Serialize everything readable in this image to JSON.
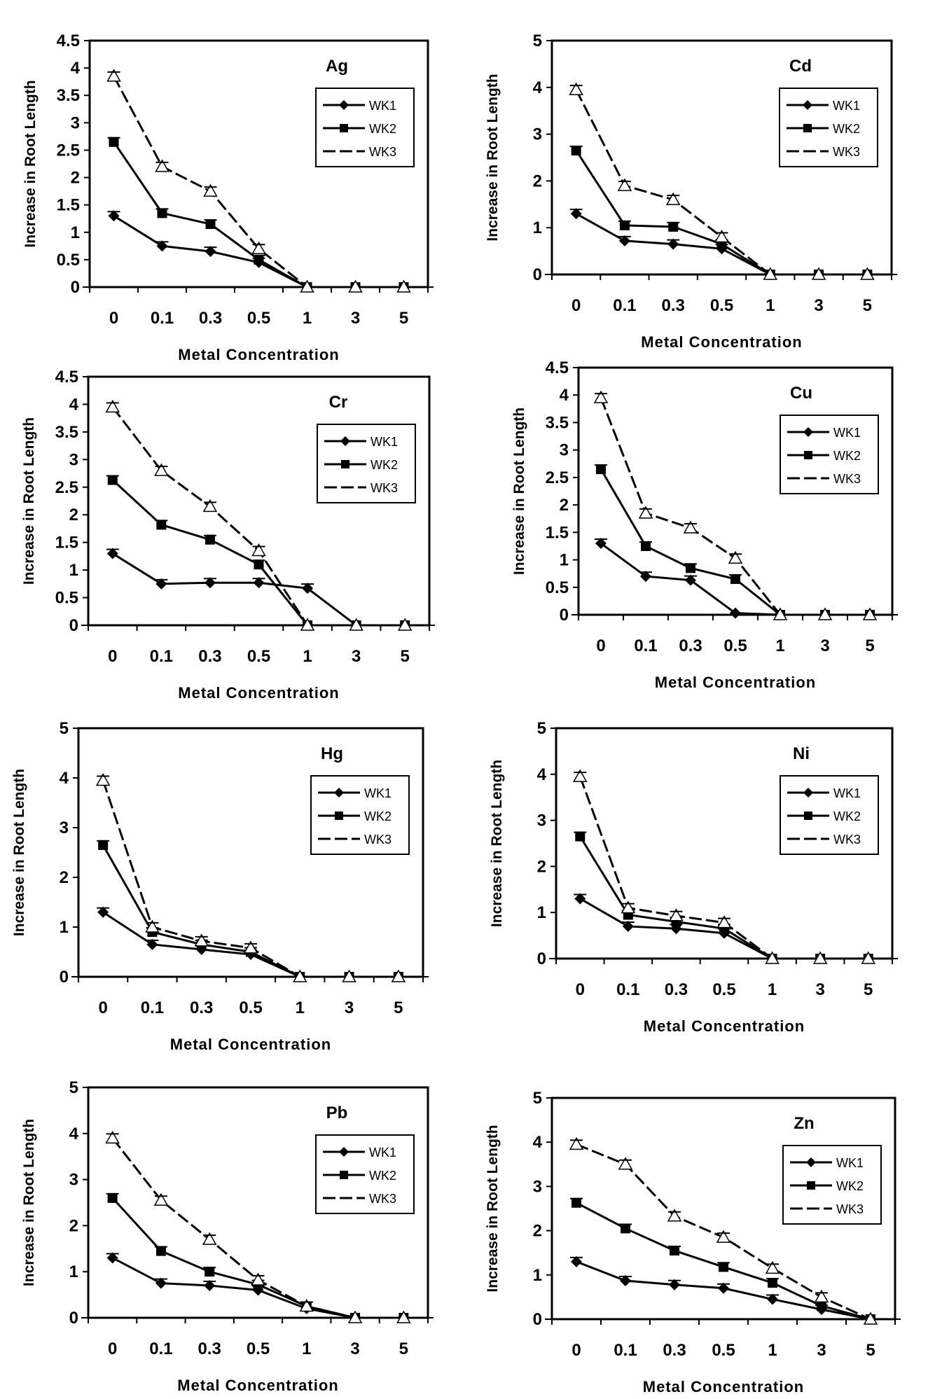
{
  "figure": {
    "x_categories": [
      "0",
      "0.1",
      "0.3",
      "0.5",
      "1",
      "3",
      "5"
    ],
    "xlabel": "Metal Concentration",
    "ylabel": "Increase in Root Length",
    "legend": [
      "WK1",
      "WK2",
      "WK3"
    ]
  },
  "chart_data": [
    {
      "type": "line",
      "title": "Ag",
      "categories": [
        "0",
        "0.1",
        "0.3",
        "0.5",
        "1",
        "3",
        "5"
      ],
      "xlabel": "Metal Concentration",
      "ylabel": "Increase in Root Length",
      "ylim": [
        0,
        4.5
      ],
      "yticks": [
        "0",
        "0.5",
        "1",
        "1.5",
        "2",
        "2.5",
        "3",
        "3.5",
        "4",
        "4.5"
      ],
      "legend_position": "top-right",
      "series": [
        {
          "name": "WK1",
          "values": [
            1.3,
            0.75,
            0.65,
            0.45,
            0,
            0,
            0
          ]
        },
        {
          "name": "WK2",
          "values": [
            2.65,
            1.35,
            1.15,
            0.5,
            0,
            0,
            0
          ]
        },
        {
          "name": "WK3",
          "values": [
            3.85,
            2.2,
            1.75,
            0.7,
            0,
            0,
            0
          ]
        }
      ]
    },
    {
      "type": "line",
      "title": "Cd",
      "categories": [
        "0",
        "0.1",
        "0.3",
        "0.5",
        "1",
        "3",
        "5"
      ],
      "xlabel": "Metal Concentration",
      "ylabel": "Increase in Root Length",
      "ylim": [
        0,
        5
      ],
      "yticks": [
        "0",
        "1",
        "2",
        "3",
        "4",
        "5"
      ],
      "legend_position": "top-right",
      "series": [
        {
          "name": "WK1",
          "values": [
            1.3,
            0.72,
            0.65,
            0.55,
            0,
            0,
            0
          ]
        },
        {
          "name": "WK2",
          "values": [
            2.65,
            1.05,
            1.02,
            0.65,
            0,
            0,
            0
          ]
        },
        {
          "name": "WK3",
          "values": [
            3.95,
            1.9,
            1.6,
            0.8,
            0,
            0,
            0
          ]
        }
      ]
    },
    {
      "type": "line",
      "title": "Cr",
      "categories": [
        "0",
        "0.1",
        "0.3",
        "0.5",
        "1",
        "3",
        "5"
      ],
      "xlabel": "Metal Concentration",
      "ylabel": "Increase in Root Length",
      "ylim": [
        0,
        4.5
      ],
      "yticks": [
        "0",
        "0.5",
        "1",
        "1.5",
        "2",
        "2.5",
        "3",
        "3.5",
        "4",
        "4.5"
      ],
      "legend_position": "top-right",
      "series": [
        {
          "name": "WK1",
          "values": [
            1.3,
            0.75,
            0.77,
            0.77,
            0.67,
            0,
            0
          ]
        },
        {
          "name": "WK2",
          "values": [
            2.63,
            1.82,
            1.55,
            1.1,
            0,
            0,
            0
          ]
        },
        {
          "name": "WK3",
          "values": [
            3.95,
            2.8,
            2.15,
            1.35,
            0,
            0,
            0
          ]
        }
      ]
    },
    {
      "type": "line",
      "title": "Cu",
      "categories": [
        "0",
        "0.1",
        "0.3",
        "0.5",
        "1",
        "3",
        "5"
      ],
      "xlabel": "Metal Concentration",
      "ylabel": "Increase in Root Length",
      "ylim": [
        0,
        4.5
      ],
      "yticks": [
        "0",
        "0.5",
        "1",
        "1.5",
        "2",
        "2.5",
        "3",
        "3.5",
        "4",
        "4.5"
      ],
      "legend_position": "top-right",
      "series": [
        {
          "name": "WK1",
          "values": [
            1.3,
            0.7,
            0.63,
            0.03,
            0,
            0,
            0
          ]
        },
        {
          "name": "WK2",
          "values": [
            2.65,
            1.25,
            0.85,
            0.65,
            0,
            0,
            0
          ]
        },
        {
          "name": "WK3",
          "values": [
            3.95,
            1.85,
            1.58,
            1.03,
            0,
            0,
            0
          ]
        }
      ]
    },
    {
      "type": "line",
      "title": "Hg",
      "categories": [
        "0",
        "0.1",
        "0.3",
        "0.5",
        "1",
        "3",
        "5"
      ],
      "xlabel": "Metal Concentration",
      "ylabel": "Increase in Root Length",
      "ylim": [
        0,
        5
      ],
      "yticks": [
        "0",
        "1",
        "2",
        "3",
        "4",
        "5"
      ],
      "legend_position": "top-right",
      "series": [
        {
          "name": "WK1",
          "values": [
            1.3,
            0.65,
            0.55,
            0.45,
            0,
            0,
            0
          ]
        },
        {
          "name": "WK2",
          "values": [
            2.65,
            0.9,
            0.65,
            0.5,
            0,
            0,
            0
          ]
        },
        {
          "name": "WK3",
          "values": [
            3.95,
            1.0,
            0.72,
            0.58,
            0,
            0,
            0
          ]
        }
      ]
    },
    {
      "type": "line",
      "title": "Ni",
      "categories": [
        "0",
        "0.1",
        "0.3",
        "0.5",
        "1",
        "3",
        "5"
      ],
      "xlabel": "Metal Concentration",
      "ylabel": "Increase in Root Length",
      "ylim": [
        0,
        5
      ],
      "yticks": [
        "0",
        "1",
        "2",
        "3",
        "4",
        "5"
      ],
      "legend_position": "top-right",
      "series": [
        {
          "name": "WK1",
          "values": [
            1.3,
            0.7,
            0.65,
            0.55,
            0,
            0,
            0
          ]
        },
        {
          "name": "WK2",
          "values": [
            2.65,
            0.95,
            0.8,
            0.65,
            0,
            0,
            0
          ]
        },
        {
          "name": "WK3",
          "values": [
            3.95,
            1.1,
            0.93,
            0.78,
            0,
            0,
            0
          ]
        }
      ]
    },
    {
      "type": "line",
      "title": "Pb",
      "categories": [
        "0",
        "0.1",
        "0.3",
        "0.5",
        "1",
        "3",
        "5"
      ],
      "xlabel": "Metal Concentration",
      "ylabel": "Increase in Root Length",
      "ylim": [
        0,
        5
      ],
      "yticks": [
        "0",
        "1",
        "2",
        "3",
        "4",
        "5"
      ],
      "legend_position": "top-right",
      "series": [
        {
          "name": "WK1",
          "values": [
            1.3,
            0.75,
            0.7,
            0.6,
            0.2,
            0,
            0
          ]
        },
        {
          "name": "WK2",
          "values": [
            2.6,
            1.45,
            1.0,
            0.72,
            0.25,
            0,
            0
          ]
        },
        {
          "name": "WK3",
          "values": [
            3.9,
            2.55,
            1.7,
            0.82,
            0.25,
            0,
            0
          ]
        }
      ]
    },
    {
      "type": "line",
      "title": "Zn",
      "categories": [
        "0",
        "0.1",
        "0.3",
        "0.5",
        "1",
        "3",
        "5"
      ],
      "xlabel": "Metal Concentration",
      "ylabel": "Increase in Root Length",
      "ylim": [
        0,
        5
      ],
      "yticks": [
        "0",
        "1",
        "2",
        "3",
        "4",
        "5"
      ],
      "legend_position": "top-right",
      "series": [
        {
          "name": "WK1",
          "values": [
            1.3,
            0.87,
            0.78,
            0.7,
            0.45,
            0.22,
            0
          ]
        },
        {
          "name": "WK2",
          "values": [
            2.63,
            2.05,
            1.55,
            1.18,
            0.82,
            0.3,
            0
          ]
        },
        {
          "name": "WK3",
          "values": [
            3.95,
            3.5,
            2.33,
            1.85,
            1.15,
            0.5,
            0
          ]
        }
      ]
    }
  ]
}
